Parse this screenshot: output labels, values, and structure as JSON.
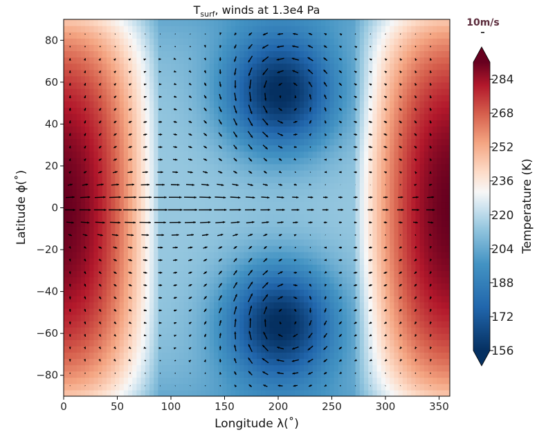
{
  "chart_data": {
    "type": "heatmap",
    "title": "T_surf, winds at 1.3e4 Pa",
    "title_main": "T",
    "title_sub": "surf",
    "title_rest": ", winds at 1.3e4 Pa",
    "xlabel": "Longitude λ(˚)",
    "ylabel": "Latitude ϕ(˚)",
    "xlim": [
      0,
      360
    ],
    "ylim": [
      -90,
      90
    ],
    "x_ticks": [
      "0",
      "50",
      "100",
      "150",
      "200",
      "250",
      "300",
      "350"
    ],
    "y_ticks": [
      "80",
      "60",
      "40",
      "20",
      "0",
      "−20",
      "−40",
      "−60",
      "−80"
    ],
    "colorbar": {
      "label": "Temperature (K)",
      "range": [
        156,
        292
      ],
      "ticks": [
        "284",
        "268",
        "252",
        "236",
        "220",
        "204",
        "188",
        "172",
        "156"
      ],
      "colormap": "RdBu_r",
      "extend": "both"
    },
    "quiver_key": "10m/s",
    "field_features": [
      {
        "name": "warm-region-west",
        "lon_range": [
          0,
          75
        ],
        "lat_range": [
          -85,
          85
        ],
        "peak_K": 290
      },
      {
        "name": "warm-region-east",
        "lon_range": [
          285,
          360
        ],
        "lat_range": [
          -85,
          85
        ],
        "peak_K": 290
      },
      {
        "name": "cold-vortex-north",
        "lon": 200,
        "lat": 55,
        "min_K": 158
      },
      {
        "name": "cold-vortex-south",
        "lon": 200,
        "lat": -55,
        "min_K": 158
      },
      {
        "name": "equatorial-band",
        "lon_range": [
          100,
          280
        ],
        "lat_range": [
          -25,
          25
        ],
        "approx_K": 215
      }
    ],
    "grid": false
  },
  "colors": {
    "hot": "#67001f",
    "warm": "#d6604d",
    "neutral": "#f7f7f7",
    "cool": "#4393c3",
    "cold": "#053061",
    "arrow": "#000000"
  }
}
